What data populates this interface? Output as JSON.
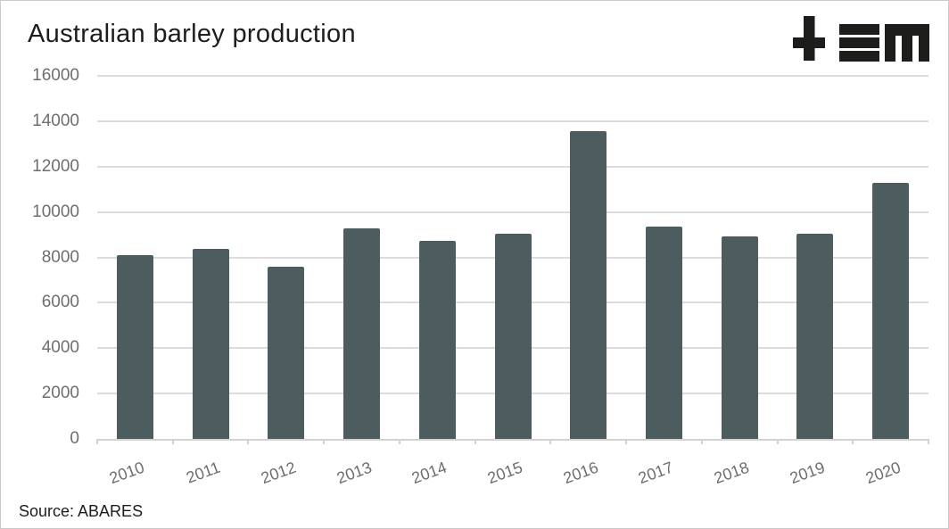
{
  "title": "Australian barley production",
  "source": "Source: ABARES",
  "logo": {
    "name": "tem-logo",
    "color": "#1d1d1b"
  },
  "colors": {
    "bar": "#4c5c5f",
    "gridline": "#dcdcdc",
    "axis": "#d2d2d2",
    "axis_label": "#6e6e6e",
    "text": "#1d1d1b",
    "frame_border": "#c9c9c9",
    "background": "#ffffff"
  },
  "chart_data": {
    "type": "bar",
    "title": "Australian barley production",
    "categories": [
      "2010",
      "2011",
      "2012",
      "2013",
      "2014",
      "2015",
      "2016",
      "2017",
      "2018",
      "2019",
      "2020"
    ],
    "values": [
      8100,
      8380,
      7570,
      9270,
      8710,
      9040,
      13550,
      9350,
      8920,
      9060,
      11290
    ],
    "xlabel": "",
    "ylabel": "",
    "ylim": [
      0,
      16000
    ],
    "yticks": [
      0,
      2000,
      4000,
      6000,
      8000,
      10000,
      12000,
      14000,
      16000
    ],
    "grid": "horizontal",
    "legend": "none",
    "x_label_rotation_deg": -20,
    "source": "Source: ABARES"
  }
}
